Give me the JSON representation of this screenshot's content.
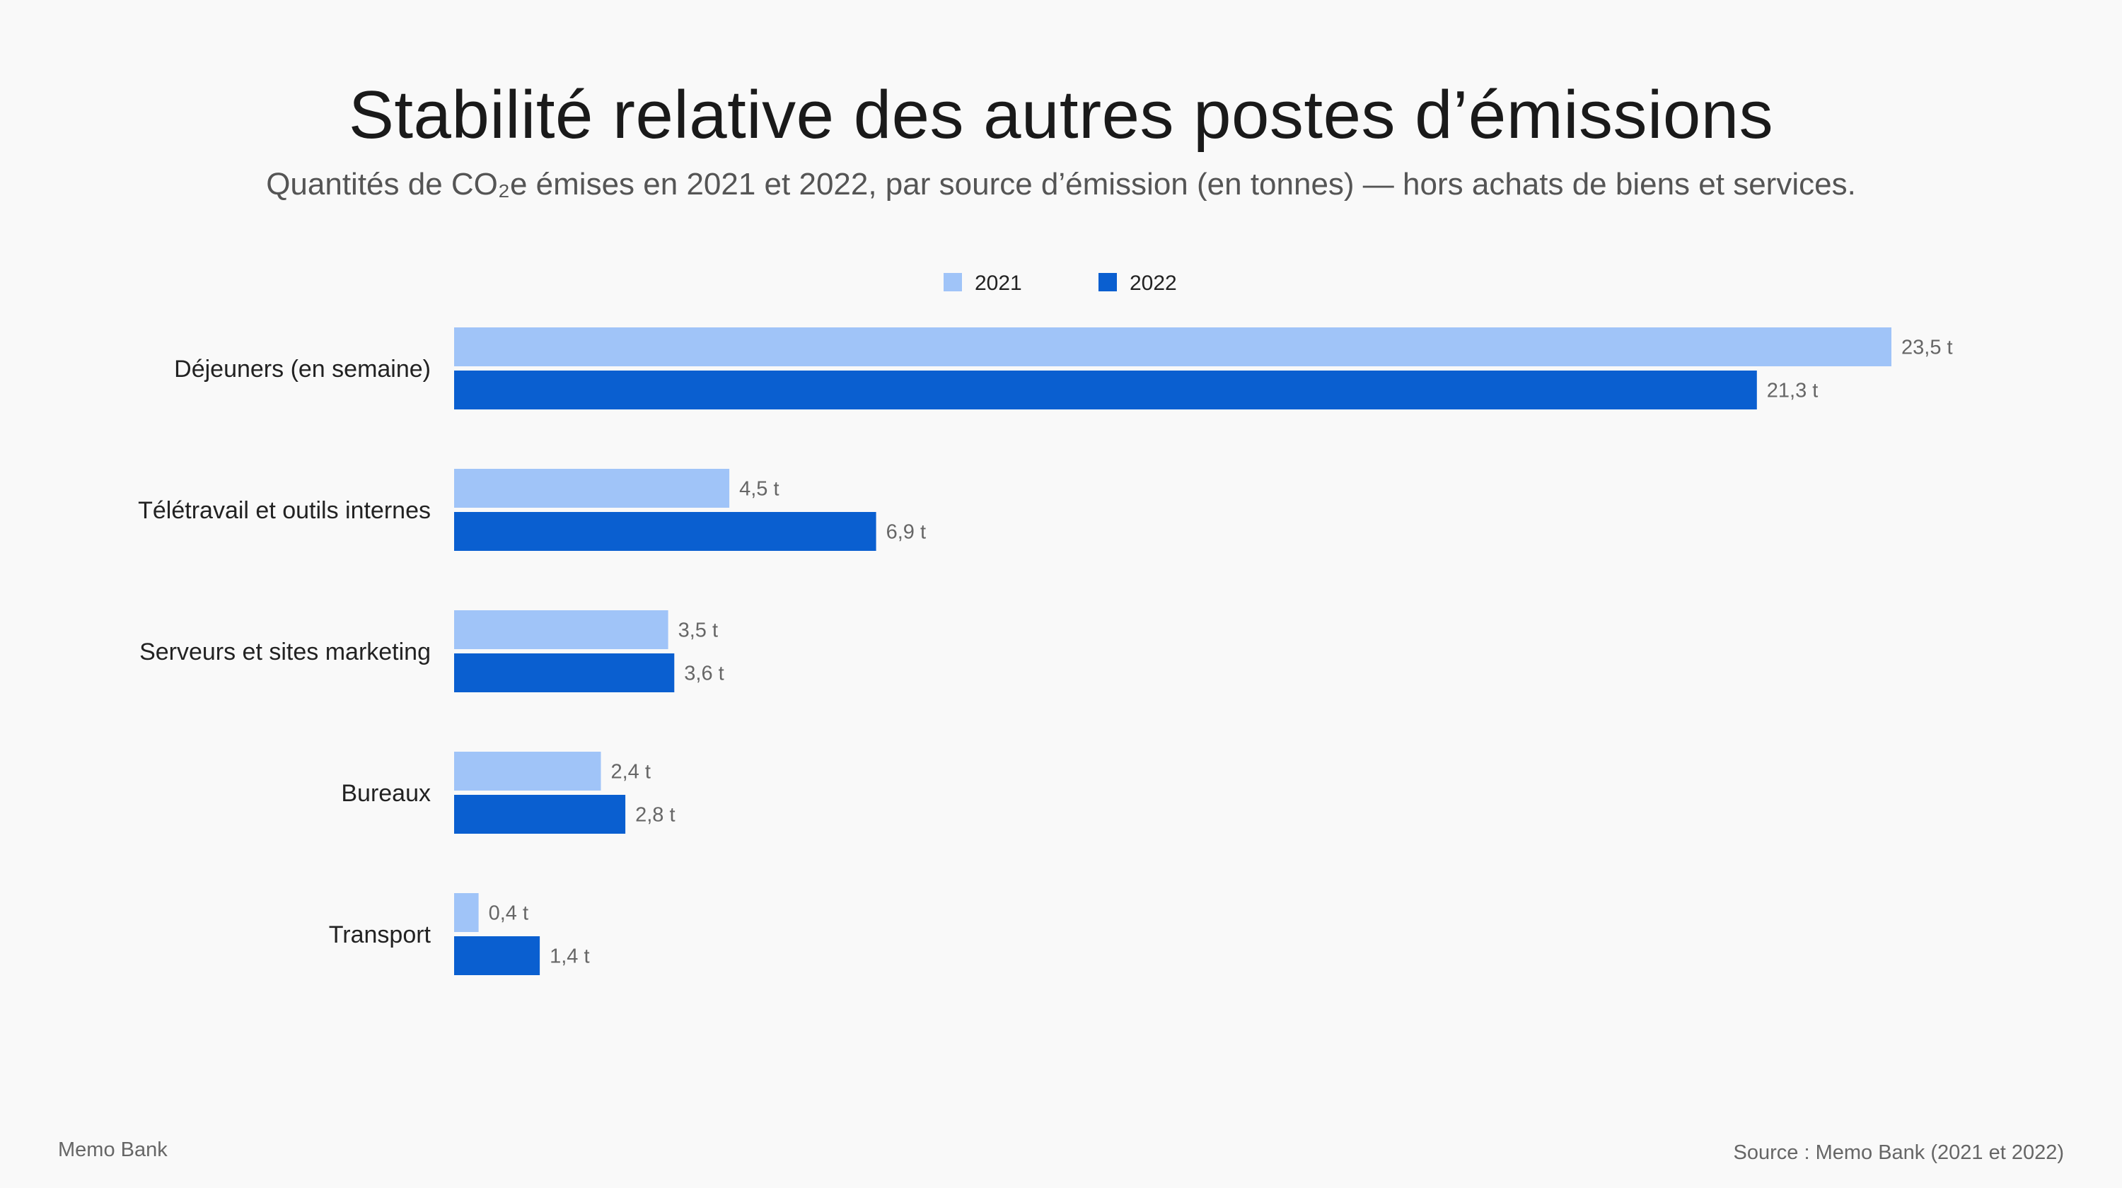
{
  "title": "Stabilité relative des autres postes d’émissions",
  "subtitle": "Quantités de CO₂e émises en 2021 et 2022, par source d’émission (en tonnes) — hors achats de biens et services.",
  "footer": {
    "left": "Memo Bank",
    "right": "Source : Memo Bank (2021 et 2022)"
  },
  "colors": {
    "series_2021": "#a0c4f8",
    "series_2022": "#0a5fd0"
  },
  "chart_data": {
    "type": "bar",
    "orientation": "horizontal",
    "categories": [
      "Déjeuners (en semaine)",
      "Télétravail et outils internes",
      "Serveurs et sites marketing",
      "Bureaux",
      "Transport"
    ],
    "series": [
      {
        "name": "2021",
        "values": [
          23.5,
          4.5,
          3.5,
          2.4,
          0.4
        ],
        "labels": [
          "23,5 t",
          "4,5 t",
          "3,5 t",
          "2,4 t",
          "0,4 t"
        ]
      },
      {
        "name": "2022",
        "values": [
          21.3,
          6.9,
          3.6,
          2.8,
          1.4
        ],
        "labels": [
          "21,3 t",
          "6,9 t",
          "3,6 t",
          "2,8 t",
          "1,4 t"
        ]
      }
    ],
    "xlim": [
      0,
      23.5
    ],
    "legend_position": "top-center",
    "grid": false
  }
}
